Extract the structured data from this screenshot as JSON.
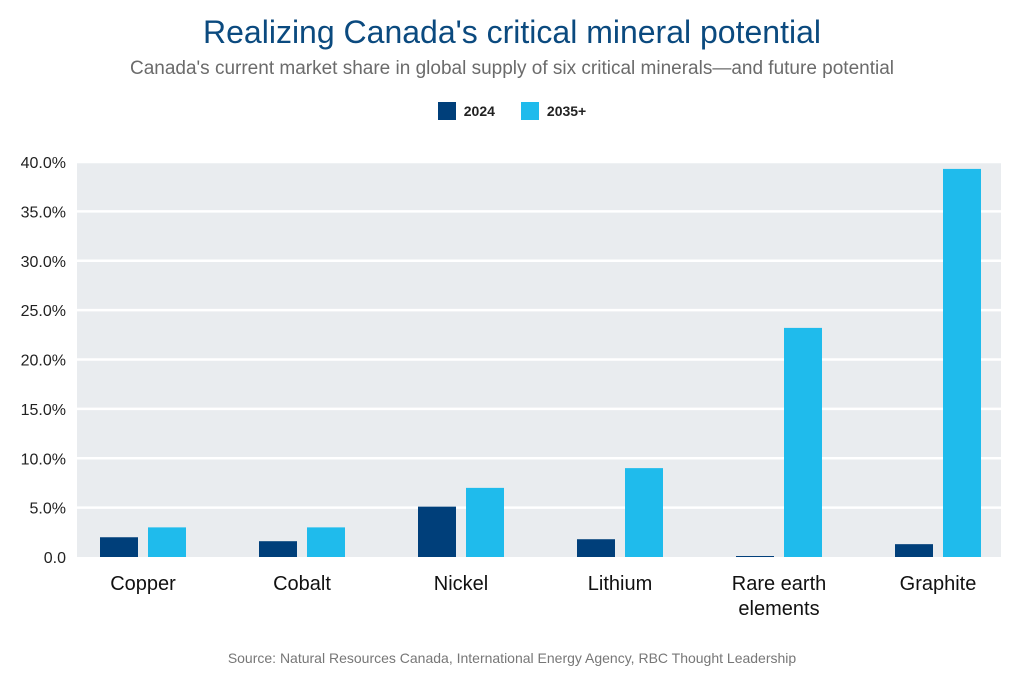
{
  "chart_data": {
    "type": "bar",
    "title": "Realizing Canada's critical mineral potential",
    "subtitle": "Canada's current market share in global supply of six critical minerals—and future potential",
    "categories": [
      "Copper",
      "Cobalt",
      "Nickel",
      "Lithium",
      "Rare earth elements",
      "Graphite"
    ],
    "series": [
      {
        "name": "2024",
        "color": "#003f7a",
        "values": [
          2.0,
          1.6,
          5.1,
          1.8,
          0.1,
          1.3
        ]
      },
      {
        "name": "2035+",
        "color": "#1fbbec",
        "values": [
          3.0,
          3.0,
          7.0,
          9.0,
          23.2,
          39.3
        ]
      }
    ],
    "yticks": [
      "0.0",
      "5.0%",
      "10.0%",
      "15.0%",
      "20.0%",
      "25.0%",
      "30.0%",
      "35.0%",
      "40.0%"
    ],
    "ylim": [
      0,
      40
    ],
    "grid": true,
    "legend": "top-center",
    "plot_background": "#e9ecef",
    "source": "Source: Natural Resources Canada, International Energy Agency, RBC Thought Leadership"
  }
}
